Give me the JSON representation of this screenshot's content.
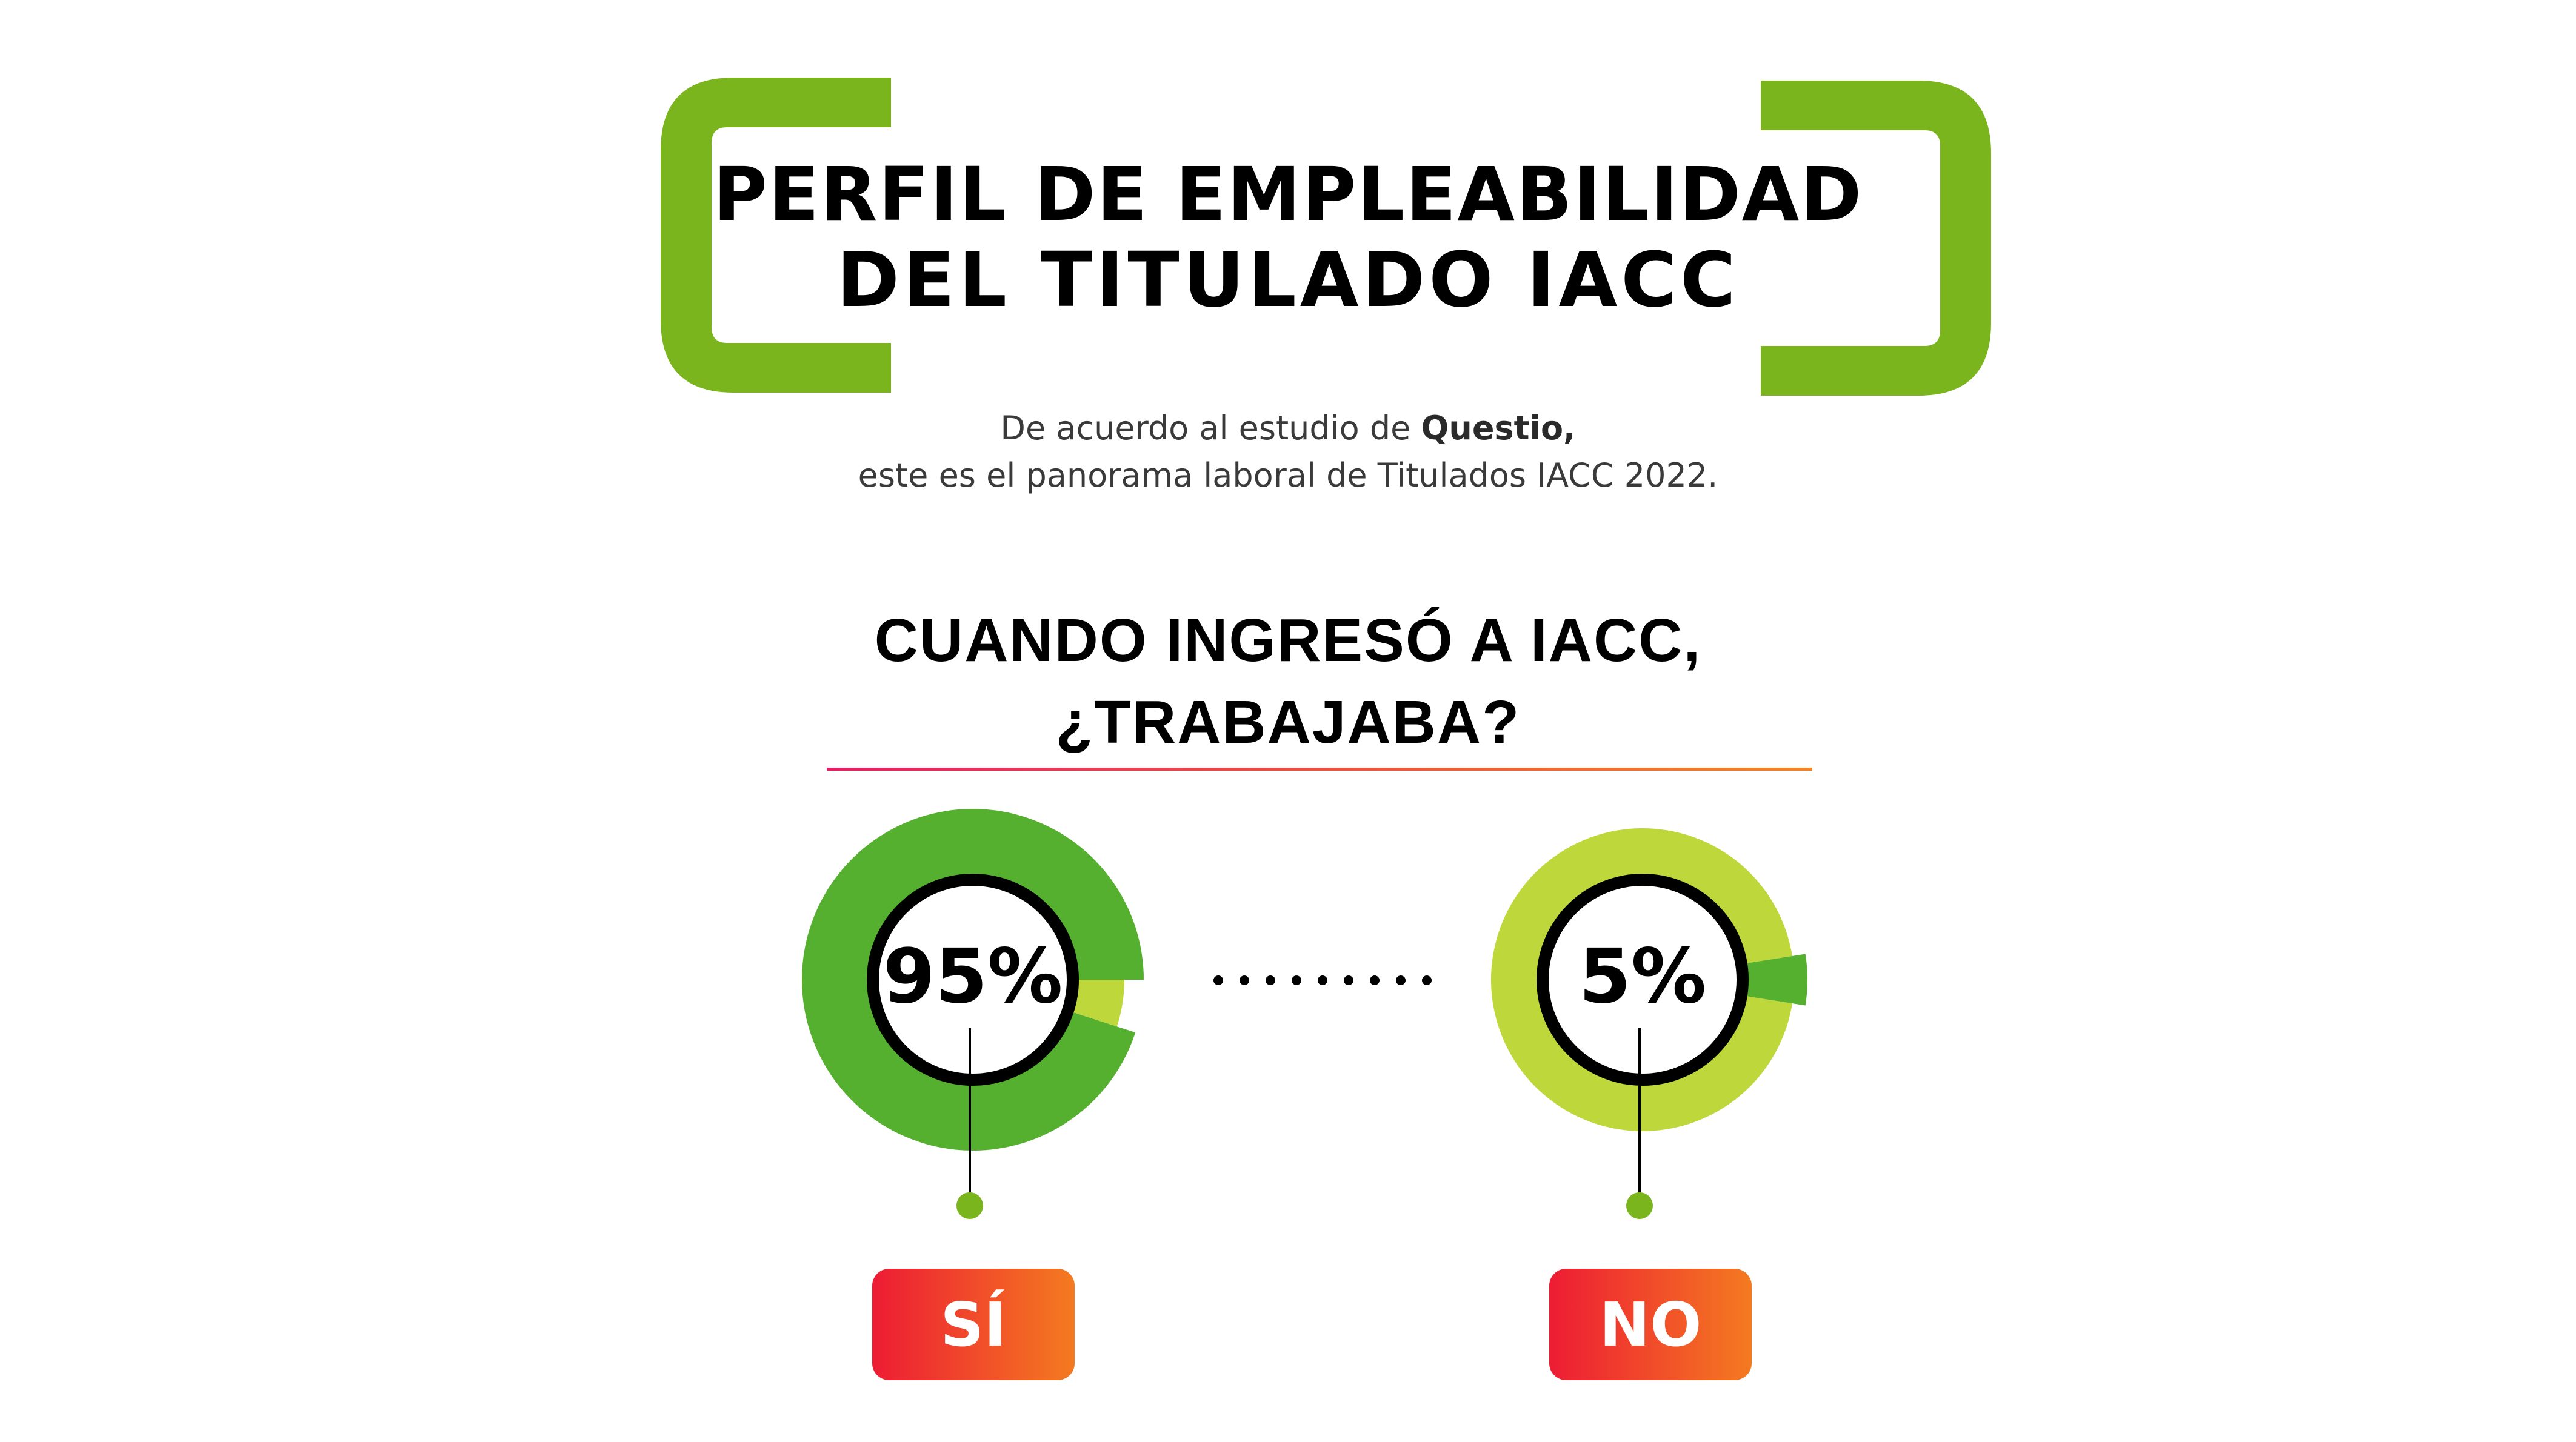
{
  "header": {
    "title_line1": "PERFIL DE EMPLEABILIDAD",
    "title_line2": "DEL TITULADO IACC",
    "bracket_color": "#7AB51D"
  },
  "intro": {
    "line1_prefix": "De acuerdo al estudio de ",
    "line1_bold": "Questio,",
    "line2": "este es el panorama laboral de Titulados IACC 2022."
  },
  "question": {
    "line1": "CUANDO INGRESÓ A IACC,",
    "line2": "¿TRABAJABA?"
  },
  "chart_data": {
    "type": "pie",
    "title": "CUANDO INGRESÓ A IACC, ¿TRABAJABA?",
    "categories": [
      "SÍ",
      "NO"
    ],
    "values": [
      95,
      5
    ],
    "value_labels": [
      "95%",
      "5%"
    ],
    "colors": {
      "highlight": "#55B030",
      "remainder": "#BED73B",
      "badge_start": "#ED1C34",
      "badge_end": "#F47A20",
      "marker": "#7AB51D"
    }
  },
  "icons": [
    "left-bracket-icon",
    "right-bracket-icon",
    "dotted-connector-icon",
    "marker-dot-icon"
  ]
}
